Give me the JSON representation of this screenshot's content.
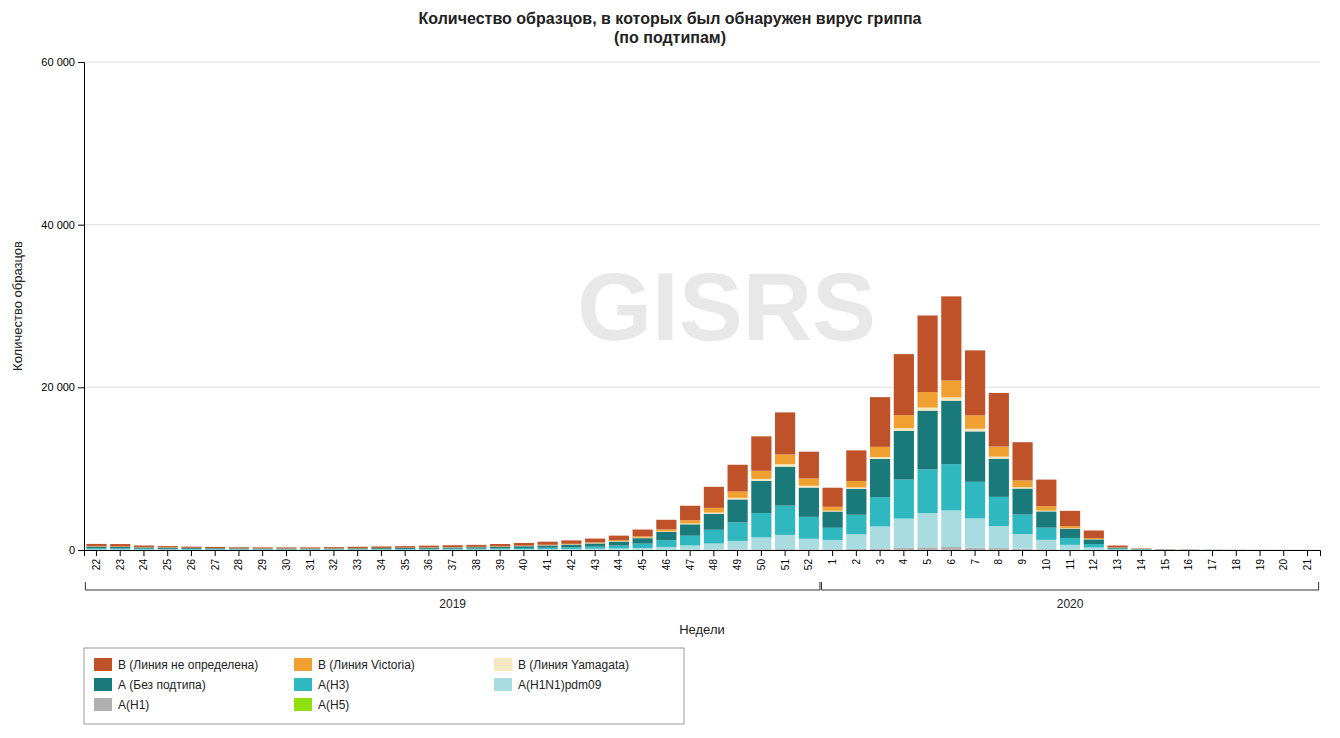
{
  "chart_data": {
    "type": "bar",
    "stacked": true,
    "title": "Количество образцов, в которых был обнаружен вирус гриппа\n(по подтипам)",
    "xlabel": "Недели",
    "ylabel": "Количество образцов",
    "watermark": "GISRS",
    "annotations": [
      {
        "text": "2019",
        "from": "22",
        "to": "52"
      },
      {
        "text": "2020",
        "from": "1",
        "to": "21"
      }
    ],
    "categories": [
      "22",
      "23",
      "24",
      "25",
      "26",
      "27",
      "28",
      "29",
      "30",
      "31",
      "32",
      "33",
      "34",
      "35",
      "36",
      "37",
      "38",
      "39",
      "40",
      "41",
      "42",
      "43",
      "44",
      "45",
      "46",
      "47",
      "48",
      "49",
      "50",
      "51",
      "52",
      "1",
      "2",
      "3",
      "4",
      "5",
      "6",
      "7",
      "8",
      "9",
      "10",
      "11",
      "12",
      "13",
      "14",
      "15",
      "16",
      "17",
      "18",
      "19",
      "20",
      "21"
    ],
    "series": [
      {
        "name": "А(Н5)",
        "color": "#90e010",
        "values": [
          3,
          3,
          3,
          2,
          2,
          2,
          2,
          2,
          2,
          2,
          2,
          2,
          2,
          2,
          2,
          2,
          2,
          2,
          2,
          2,
          2,
          2,
          2,
          2,
          3,
          3,
          3,
          4,
          4,
          5,
          4,
          3,
          3,
          4,
          4,
          5,
          5,
          5,
          4,
          3,
          3,
          2,
          2,
          1,
          1,
          1,
          1,
          1,
          1,
          1,
          1,
          1
        ]
      },
      {
        "name": "А(Н1)",
        "color": "#b0b0b0",
        "values": [
          10,
          10,
          8,
          7,
          6,
          6,
          5,
          5,
          5,
          5,
          5,
          6,
          6,
          7,
          7,
          8,
          8,
          9,
          10,
          11,
          12,
          14,
          16,
          20,
          25,
          35,
          50,
          65,
          85,
          100,
          75,
          80,
          130,
          190,
          260,
          330,
          360,
          280,
          230,
          155,
          95,
          50,
          22,
          6,
          3,
          2,
          2,
          1,
          1,
          1,
          1,
          1
        ]
      },
      {
        "name": "А(H1N1)pdm09",
        "color": "#a8dce0",
        "values": [
          80,
          75,
          60,
          55,
          50,
          45,
          40,
          38,
          35,
          35,
          38,
          40,
          45,
          50,
          55,
          60,
          65,
          75,
          85,
          100,
          115,
          140,
          170,
          230,
          350,
          520,
          750,
          1050,
          1450,
          1750,
          1300,
          1150,
          1800,
          2700,
          3600,
          4200,
          4500,
          3600,
          2700,
          1800,
          1150,
          580,
          290,
          70,
          35,
          15,
          9,
          6,
          3,
          1,
          1,
          1
        ]
      },
      {
        "name": "А(Н3)",
        "color": "#30b8c0",
        "values": [
          120,
          110,
          90,
          80,
          70,
          65,
          58,
          54,
          52,
          52,
          55,
          60,
          68,
          75,
          85,
          95,
          108,
          120,
          148,
          178,
          210,
          265,
          355,
          535,
          830,
          1200,
          1680,
          2280,
          3000,
          3600,
          2700,
          1500,
          2400,
          3600,
          4800,
          5400,
          5700,
          4500,
          3600,
          2400,
          1500,
          850,
          420,
          90,
          42,
          18,
          12,
          7,
          4,
          2,
          1,
          1
        ]
      },
      {
        "name": "А (Без подтипа)",
        "color": "#1a7a7a",
        "values": [
          200,
          180,
          155,
          130,
          110,
          100,
          90,
          85,
          82,
          82,
          88,
          95,
          108,
          118,
          132,
          148,
          162,
          188,
          215,
          268,
          318,
          388,
          498,
          668,
          1008,
          1400,
          1980,
          2820,
          3960,
          4800,
          3600,
          2000,
          3200,
          4700,
          6000,
          7200,
          7800,
          6200,
          4700,
          3200,
          2000,
          1140,
          570,
          110,
          55,
          22,
          14,
          9,
          5,
          2,
          1,
          1
        ]
      },
      {
        "name": "В (Линия Yamagata)",
        "color": "#f5e8c0",
        "values": [
          15,
          15,
          12,
          10,
          8,
          7,
          6,
          5,
          5,
          5,
          6,
          7,
          8,
          9,
          10,
          12,
          14,
          16,
          20,
          25,
          30,
          38,
          48,
          62,
          82,
          108,
          145,
          190,
          245,
          295,
          220,
          95,
          155,
          240,
          310,
          370,
          400,
          320,
          245,
          165,
          100,
          50,
          24,
          6,
          3,
          2,
          2,
          1,
          1,
          1,
          1,
          1
        ]
      },
      {
        "name": "В (Линия Victoria)",
        "color": "#f0a030",
        "values": [
          40,
          40,
          32,
          28,
          24,
          20,
          18,
          17,
          16,
          16,
          18,
          20,
          22,
          26,
          30,
          34,
          38,
          44,
          52,
          62,
          72,
          90,
          115,
          155,
          240,
          390,
          575,
          780,
          1000,
          1200,
          900,
          480,
          800,
          1250,
          1600,
          1920,
          2080,
          1650,
          1240,
          830,
          520,
          260,
          130,
          32,
          16,
          7,
          5,
          3,
          2,
          1,
          1,
          1
        ]
      },
      {
        "name": "В (Линия не определена)",
        "color": "#c0522a",
        "values": [
          280,
          300,
          190,
          165,
          140,
          132,
          118,
          118,
          122,
          128,
          140,
          165,
          178,
          188,
          212,
          225,
          235,
          282,
          330,
          376,
          424,
          470,
          564,
          846,
          1175,
          1786,
          2585,
          3290,
          4230,
          5170,
          3290,
          2350,
          3760,
          6110,
          7510,
          9410,
          10340,
          7990,
          6590,
          4700,
          3290,
          1880,
          940,
          235,
          47,
          23,
          14,
          9,
          5,
          2,
          2,
          1
        ]
      }
    ],
    "ylim": [
      0,
      60000
    ],
    "yticks": [
      0,
      {
        "value": 20000,
        "label": "20 000"
      },
      {
        "value": 40000,
        "label": "40 000"
      },
      {
        "value": 60000,
        "label": "60 000"
      }
    ],
    "grid": true,
    "legend": "bottom"
  }
}
